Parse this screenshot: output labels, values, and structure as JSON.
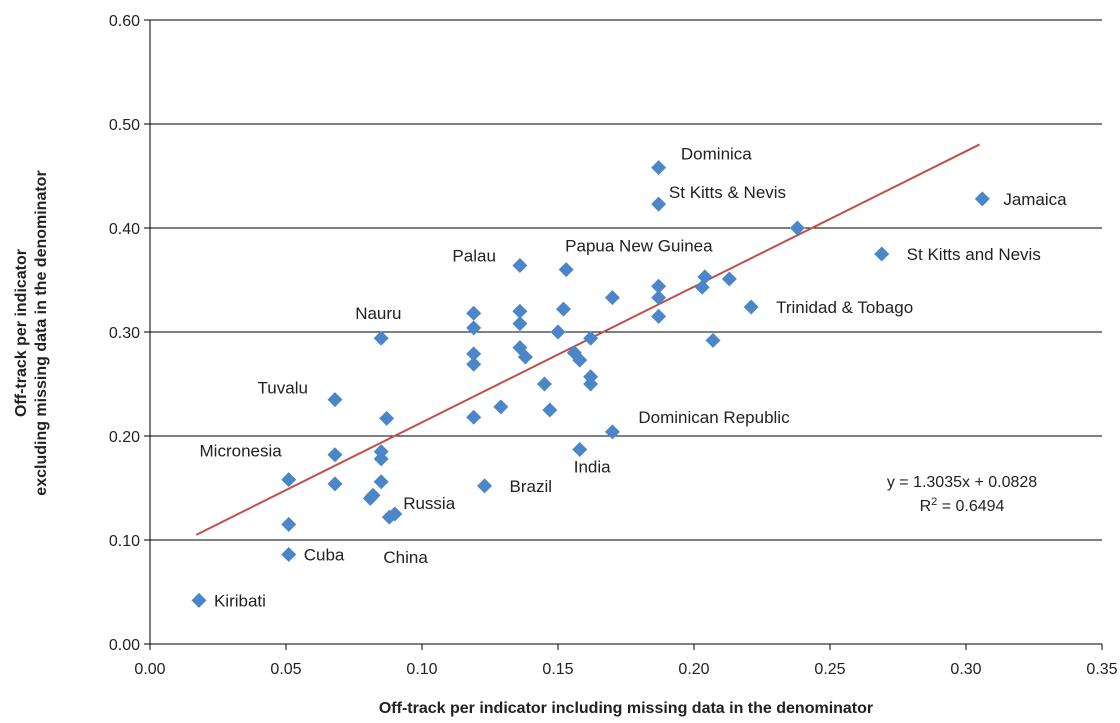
{
  "chart_data": {
    "type": "scatter",
    "xlabel": "Off-track per indicator including missing data in the denominator",
    "ylabel_line1": "Off-track per  indicator",
    "ylabel_line2": "excluding missing data in the denominator",
    "xlim": [
      0,
      0.35
    ],
    "ylim": [
      0,
      0.6
    ],
    "x_ticks": [
      "0.00",
      "0.05",
      "0.10",
      "0.15",
      "0.20",
      "0.25",
      "0.30",
      "0.35"
    ],
    "y_ticks": [
      "0.00",
      "0.10",
      "0.20",
      "0.30",
      "0.40",
      "0.50",
      "0.60"
    ],
    "grid": "horizontal",
    "marker": "diamond",
    "colors": {
      "points": "#4a86c8",
      "trendline": "#c0504d",
      "grid": "#000000",
      "text": "#222222"
    },
    "points": [
      {
        "x": 0.018,
        "y": 0.042
      },
      {
        "x": 0.051,
        "y": 0.086
      },
      {
        "x": 0.051,
        "y": 0.115
      },
      {
        "x": 0.051,
        "y": 0.158
      },
      {
        "x": 0.068,
        "y": 0.154
      },
      {
        "x": 0.068,
        "y": 0.182
      },
      {
        "x": 0.068,
        "y": 0.235
      },
      {
        "x": 0.081,
        "y": 0.14
      },
      {
        "x": 0.082,
        "y": 0.143
      },
      {
        "x": 0.085,
        "y": 0.156
      },
      {
        "x": 0.085,
        "y": 0.178
      },
      {
        "x": 0.085,
        "y": 0.185
      },
      {
        "x": 0.085,
        "y": 0.294
      },
      {
        "x": 0.087,
        "y": 0.217
      },
      {
        "x": 0.088,
        "y": 0.122
      },
      {
        "x": 0.09,
        "y": 0.125
      },
      {
        "x": 0.119,
        "y": 0.218
      },
      {
        "x": 0.119,
        "y": 0.269
      },
      {
        "x": 0.119,
        "y": 0.279
      },
      {
        "x": 0.119,
        "y": 0.304
      },
      {
        "x": 0.119,
        "y": 0.318
      },
      {
        "x": 0.123,
        "y": 0.152
      },
      {
        "x": 0.129,
        "y": 0.228
      },
      {
        "x": 0.136,
        "y": 0.285
      },
      {
        "x": 0.136,
        "y": 0.308
      },
      {
        "x": 0.136,
        "y": 0.32
      },
      {
        "x": 0.136,
        "y": 0.364
      },
      {
        "x": 0.138,
        "y": 0.276
      },
      {
        "x": 0.145,
        "y": 0.25
      },
      {
        "x": 0.147,
        "y": 0.225
      },
      {
        "x": 0.15,
        "y": 0.3
      },
      {
        "x": 0.152,
        "y": 0.322
      },
      {
        "x": 0.153,
        "y": 0.36
      },
      {
        "x": 0.156,
        "y": 0.28
      },
      {
        "x": 0.158,
        "y": 0.187
      },
      {
        "x": 0.158,
        "y": 0.273
      },
      {
        "x": 0.162,
        "y": 0.25
      },
      {
        "x": 0.162,
        "y": 0.257
      },
      {
        "x": 0.162,
        "y": 0.294
      },
      {
        "x": 0.17,
        "y": 0.204
      },
      {
        "x": 0.17,
        "y": 0.333
      },
      {
        "x": 0.187,
        "y": 0.315
      },
      {
        "x": 0.187,
        "y": 0.333
      },
      {
        "x": 0.187,
        "y": 0.344
      },
      {
        "x": 0.187,
        "y": 0.423
      },
      {
        "x": 0.187,
        "y": 0.458
      },
      {
        "x": 0.203,
        "y": 0.343
      },
      {
        "x": 0.204,
        "y": 0.353
      },
      {
        "x": 0.207,
        "y": 0.292
      },
      {
        "x": 0.213,
        "y": 0.351
      },
      {
        "x": 0.221,
        "y": 0.324
      },
      {
        "x": 0.238,
        "y": 0.4
      },
      {
        "x": 0.269,
        "y": 0.375
      },
      {
        "x": 0.306,
        "y": 0.428
      }
    ],
    "annotations": [
      {
        "text": "Dominica",
        "x": 0.186,
        "y": 0.458,
        "anchor": "start",
        "dx": 25,
        "dy": -8
      },
      {
        "text": "St Kitts & Nevis",
        "x": 0.186,
        "y": 0.423,
        "anchor": "start",
        "dx": 13,
        "dy": -6
      },
      {
        "text": "Jamaica",
        "x": 0.306,
        "y": 0.428,
        "anchor": "start",
        "dx": 21,
        "dy": 6
      },
      {
        "text": "Papua New Guinea",
        "x": 0.153,
        "y": 0.36,
        "anchor": "start",
        "dx": -1,
        "dy": -18
      },
      {
        "text": "Palau",
        "x": 0.136,
        "y": 0.364,
        "anchor": "end",
        "dx": -24,
        "dy": -4
      },
      {
        "text": "St Kitts and Nevis",
        "x": 0.269,
        "y": 0.375,
        "anchor": "start",
        "dx": 25,
        "dy": 6
      },
      {
        "text": "Trinidad & Tobago",
        "x": 0.221,
        "y": 0.324,
        "anchor": "start",
        "dx": 25,
        "dy": 6
      },
      {
        "text": "Nauru",
        "x": 0.085,
        "y": 0.294,
        "anchor": "start",
        "dx": -26,
        "dy": -19
      },
      {
        "text": "Tuvalu",
        "x": 0.068,
        "y": 0.235,
        "anchor": "end",
        "dx": -27,
        "dy": -6
      },
      {
        "text": "Dominican Republic",
        "x": 0.17,
        "y": 0.204,
        "anchor": "start",
        "dx": 26,
        "dy": -9
      },
      {
        "text": "Micronesia",
        "x": 0.051,
        "y": 0.158,
        "anchor": "end",
        "dx": -7,
        "dy": -23
      },
      {
        "text": "India",
        "x": 0.158,
        "y": 0.187,
        "anchor": "start",
        "dx": -6,
        "dy": 23
      },
      {
        "text": "Brazil",
        "x": 0.123,
        "y": 0.152,
        "anchor": "start",
        "dx": 25,
        "dy": 6
      },
      {
        "text": "Russia",
        "x": 0.085,
        "y": 0.156,
        "anchor": "start",
        "dx": 22,
        "dy": 27
      },
      {
        "text": "Cuba",
        "x": 0.051,
        "y": 0.086,
        "anchor": "start",
        "dx": 15,
        "dy": 6
      },
      {
        "text": "China",
        "x": 0.088,
        "y": 0.122,
        "anchor": "start",
        "dx": -6,
        "dy": 46
      },
      {
        "text": "Kiribati",
        "x": 0.018,
        "y": 0.042,
        "anchor": "start",
        "dx": 15,
        "dy": 6
      }
    ],
    "trendline": {
      "slope": 1.3035,
      "intercept": 0.0828,
      "x_range": [
        0.017,
        0.305
      ],
      "equation": "y = 1.3035x + 0.0828",
      "r2_prefix": "R",
      "r2_sup": "2",
      "r2_value": " = 0.6494"
    }
  }
}
